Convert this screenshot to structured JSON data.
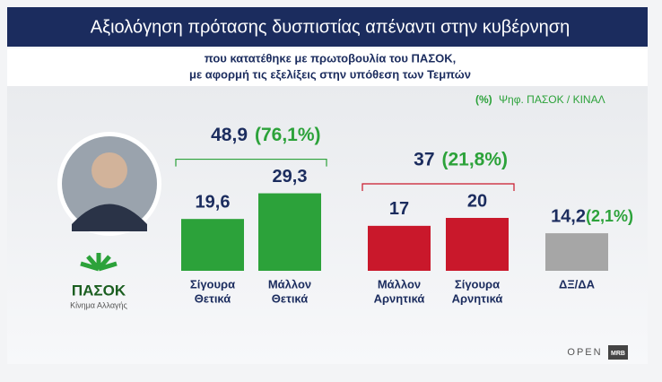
{
  "chart_data": {
    "type": "bar",
    "title": "Αξιολόγηση πρότασης δυσπιστίας απέναντι στην κυβέρνηση",
    "subtitle": [
      "που κατατέθηκε με πρωτοβουλία του ΠΑΣΟΚ,",
      "με αφορμή τις εξελίξεις στην υπόθεση των Τεμπών"
    ],
    "legend": {
      "marker": "(%)",
      "text": "Ψηφ. ΠΑΣΟΚ / ΚΙΝΑΛ"
    },
    "categories": [
      [
        "Σίγουρα",
        "Θετικά"
      ],
      [
        "Μάλλον",
        "Θετικά"
      ],
      [
        "Μάλλον",
        "Αρνητικά"
      ],
      [
        "Σίγουρα",
        "Αρνητικά"
      ],
      [
        "ΔΞ/ΔΑ"
      ]
    ],
    "values": [
      19.6,
      29.3,
      17,
      20,
      14.2
    ],
    "value_labels": [
      "19,6",
      "29,3",
      "17",
      "20",
      "14,2"
    ],
    "colors": [
      "#2ca23a",
      "#2ca23a",
      "#c9182b",
      "#c9182b",
      "#a6a6a6"
    ],
    "shares": [
      null,
      null,
      null,
      null,
      2.1
    ],
    "share_labels": [
      null,
      null,
      null,
      null,
      "(2,1%)"
    ],
    "groups": [
      {
        "value": 48.9,
        "label": "48,9",
        "share": 76.1,
        "share_label": "(76,1%)",
        "color": "#2ca23a"
      },
      {
        "value": 37,
        "label": "37",
        "share": 21.8,
        "share_label": "(21,8%)",
        "color": "#c9182b"
      }
    ],
    "party": {
      "name": "ΠΑΣΟΚ",
      "tagline": "Κίνημα Αλλαγής"
    },
    "broadcaster": "OPEN",
    "pollster": "MRB"
  }
}
